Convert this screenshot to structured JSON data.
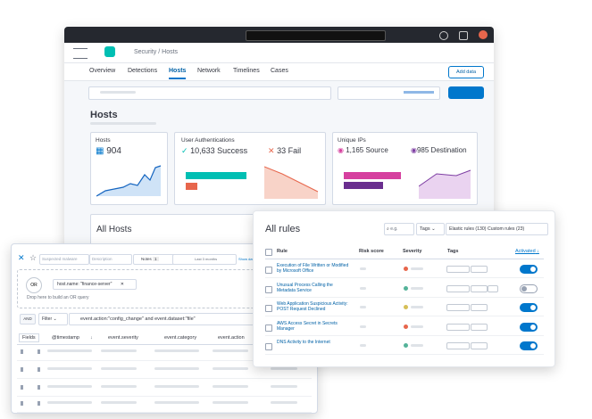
{
  "back_window": {
    "breadcrumb": [
      "Security",
      "/",
      "Hosts"
    ],
    "tabs": [
      "Overview",
      "Detections",
      "Hosts",
      "Network",
      "Timelines",
      "Cases"
    ],
    "active_tab": 2,
    "add_data": "Add data",
    "heading": "Hosts",
    "cards": {
      "hosts": {
        "title": "Hosts",
        "value": "904"
      },
      "auth": {
        "title": "User Authentications",
        "success": "10,633 Success",
        "fail": "33 Fail"
      },
      "ips": {
        "title": "Unique IPs",
        "source": "1,165 Source",
        "destination": "985 Destination"
      }
    },
    "all_hosts": "All Hosts"
  },
  "timeline": {
    "name": "Suspected malware",
    "description": "Description",
    "notes": "Notes",
    "notes_count": "1",
    "date": "Last 3 months",
    "show_dates": "Show dates",
    "or": "OR",
    "pill": "host.name: \"finance-server\"",
    "drop": "Drop here to build an OR query",
    "and": "AND",
    "filter": "Filter",
    "query": "event.action:\"config_change\" and event.dataset:\"file\"",
    "columns": [
      "Fields",
      "@timestamp",
      "event.severity",
      "event.category",
      "event.action"
    ]
  },
  "rules": {
    "title": "All rules",
    "search": "e.g.",
    "tags": "Tags",
    "elastic": "Elastic rules (130)",
    "custom": "Custom rules (23)",
    "columns": {
      "rule": "Rule",
      "risk": "Risk score",
      "severity": "Severity",
      "tags": "Tags",
      "activated": "Activated"
    },
    "rows": [
      {
        "name": "Execution of File Written or Modified by Microsoft Office",
        "severity_color": "#e7664c",
        "activated": true
      },
      {
        "name": "Unusual Process Calling the Metadata Service",
        "severity_color": "#54b399",
        "activated": false
      },
      {
        "name": "Web Application Suspicious Activity: POST Request Declined",
        "severity_color": "#d6bf57",
        "activated": true
      },
      {
        "name": "AWS Access Secret in Secrets Manager",
        "severity_color": "#e7664c",
        "activated": true
      },
      {
        "name": "DNS Activity to the Internet",
        "severity_color": "#54b399",
        "activated": true
      }
    ]
  }
}
